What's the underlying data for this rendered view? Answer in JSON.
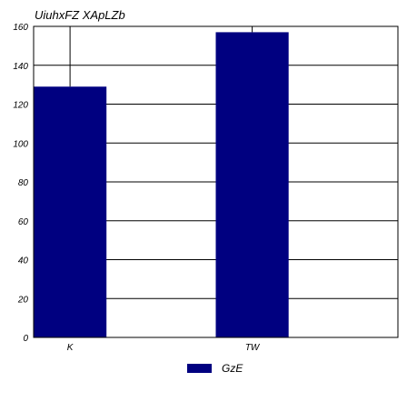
{
  "chart_data": {
    "type": "bar",
    "title": "UiuhxFZ XApLZb",
    "xlabel": "",
    "ylabel": "",
    "categories": [
      "K",
      "TW"
    ],
    "series": [
      {
        "name": "GzE",
        "values": [
          129,
          157
        ],
        "error_upper": [
          160,
          160
        ],
        "color": "#000080"
      }
    ],
    "ylim": [
      0,
      160
    ],
    "yticks": [
      0,
      20,
      40,
      60,
      80,
      100,
      120,
      140,
      160
    ],
    "grid": true,
    "legend_position": "bottom-center"
  }
}
